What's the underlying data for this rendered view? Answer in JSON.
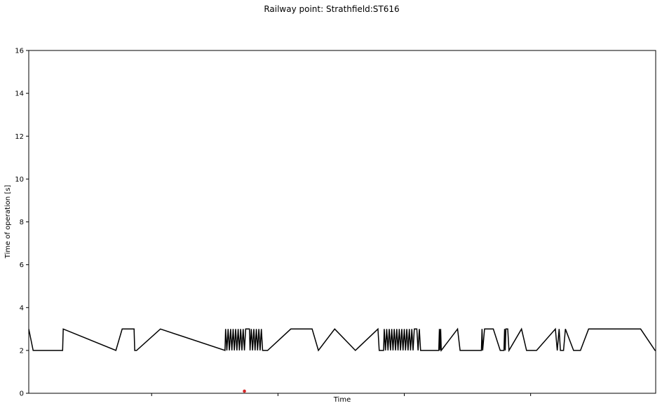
{
  "chart_data": {
    "type": "line",
    "title": "Railway point: Strathfield:ST616",
    "xlabel": "Time",
    "ylabel": "Time of operation [s]",
    "xlim": [
      0,
      1
    ],
    "ylim": [
      0,
      16
    ],
    "yticks": [
      0,
      2,
      4,
      6,
      8,
      10,
      12,
      14,
      16
    ],
    "x_tick_count": 5,
    "grid": false,
    "colors": {
      "line": "#000000",
      "marker": "#d62728"
    },
    "series": [
      {
        "values": [
          [
            0.0,
            3
          ],
          [
            0.007,
            2
          ],
          [
            0.054,
            2
          ],
          [
            0.055,
            3
          ],
          [
            0.139,
            2
          ],
          [
            0.149,
            3
          ],
          [
            0.168,
            3
          ],
          [
            0.169,
            2
          ],
          [
            0.172,
            2
          ],
          [
            0.21,
            3
          ],
          [
            0.313,
            2
          ],
          [
            0.314,
            3
          ],
          [
            0.316,
            2
          ],
          [
            0.318,
            3
          ],
          [
            0.32,
            2
          ],
          [
            0.322,
            3
          ],
          [
            0.324,
            2
          ],
          [
            0.326,
            3
          ],
          [
            0.328,
            2
          ],
          [
            0.33,
            3
          ],
          [
            0.332,
            2
          ],
          [
            0.334,
            3
          ],
          [
            0.336,
            2
          ],
          [
            0.338,
            3
          ],
          [
            0.34,
            2
          ],
          [
            0.342,
            3
          ],
          [
            0.344,
            2
          ],
          [
            0.346,
            3
          ],
          [
            0.352,
            3
          ],
          [
            0.353,
            2
          ],
          [
            0.355,
            3
          ],
          [
            0.357,
            2
          ],
          [
            0.359,
            3
          ],
          [
            0.361,
            2
          ],
          [
            0.363,
            3
          ],
          [
            0.365,
            2
          ],
          [
            0.367,
            3
          ],
          [
            0.369,
            2
          ],
          [
            0.371,
            3
          ],
          [
            0.373,
            2
          ],
          [
            0.381,
            2
          ],
          [
            0.418,
            3
          ],
          [
            0.452,
            3
          ],
          [
            0.462,
            2
          ],
          [
            0.488,
            3
          ],
          [
            0.521,
            2
          ],
          [
            0.557,
            3
          ],
          [
            0.559,
            2
          ],
          [
            0.566,
            2
          ],
          [
            0.567,
            3
          ],
          [
            0.569,
            2
          ],
          [
            0.571,
            3
          ],
          [
            0.573,
            2
          ],
          [
            0.575,
            3
          ],
          [
            0.577,
            2
          ],
          [
            0.579,
            3
          ],
          [
            0.581,
            2
          ],
          [
            0.583,
            3
          ],
          [
            0.585,
            2
          ],
          [
            0.587,
            3
          ],
          [
            0.589,
            2
          ],
          [
            0.591,
            3
          ],
          [
            0.593,
            2
          ],
          [
            0.595,
            3
          ],
          [
            0.597,
            2
          ],
          [
            0.599,
            3
          ],
          [
            0.601,
            2
          ],
          [
            0.603,
            3
          ],
          [
            0.605,
            2
          ],
          [
            0.607,
            3
          ],
          [
            0.609,
            2
          ],
          [
            0.611,
            3
          ],
          [
            0.613,
            2
          ],
          [
            0.615,
            3
          ],
          [
            0.619,
            3
          ],
          [
            0.621,
            2
          ],
          [
            0.623,
            3
          ],
          [
            0.625,
            2
          ],
          [
            0.654,
            2
          ],
          [
            0.655,
            3
          ],
          [
            0.656,
            2
          ],
          [
            0.657,
            3
          ],
          [
            0.658,
            2
          ],
          [
            0.684,
            3
          ],
          [
            0.688,
            2
          ],
          [
            0.712,
            2
          ],
          [
            0.722,
            2
          ],
          [
            0.723,
            3
          ],
          [
            0.724,
            2
          ],
          [
            0.727,
            3
          ],
          [
            0.741,
            3
          ],
          [
            0.752,
            2
          ],
          [
            0.758,
            2
          ],
          [
            0.759,
            3
          ],
          [
            0.76,
            2
          ],
          [
            0.761,
            3
          ],
          [
            0.764,
            3
          ],
          [
            0.766,
            2
          ],
          [
            0.786,
            3
          ],
          [
            0.794,
            2
          ],
          [
            0.797,
            2
          ],
          [
            0.81,
            2
          ],
          [
            0.84,
            3
          ],
          [
            0.843,
            2
          ],
          [
            0.846,
            3
          ],
          [
            0.848,
            2
          ],
          [
            0.853,
            2
          ],
          [
            0.856,
            3
          ],
          [
            0.869,
            2
          ],
          [
            0.88,
            2
          ],
          [
            0.893,
            3
          ],
          [
            0.976,
            3
          ],
          [
            0.999,
            2
          ],
          [
            1.024,
            2
          ],
          [
            1.026,
            3
          ]
        ]
      },
      {
        "values": [
          [
            0.344,
            0.1
          ]
        ]
      }
    ]
  }
}
